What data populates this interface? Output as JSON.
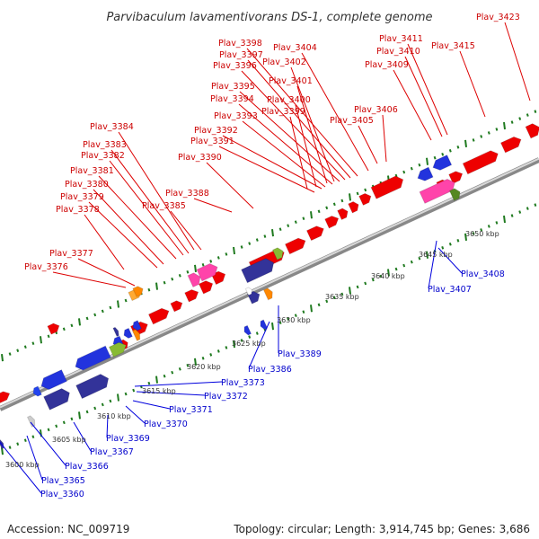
{
  "title": "Parvibaculum lavamentivorans DS-1, complete genome",
  "footer": {
    "accession": "Accession: NC_009719",
    "summary": "Topology: circular; Length: 3,914,745 bp; Genes: 3,686"
  },
  "colors": {
    "forward_label": "#cc0000",
    "reverse_label": "#0000cc",
    "backbone": "#999999",
    "ticks": "#1f7a1f"
  },
  "kbp_marks": [
    "3600 kbp",
    "3605 kbp",
    "3610 kbp",
    "3615 kbp",
    "3620 kbp",
    "3625 kbp",
    "3630 kbp",
    "3635 kbp",
    "3640 kbp",
    "3645 kbp",
    "3650 kbp"
  ],
  "forward_labels": [
    "Plav_3376",
    "Plav_3377",
    "Plav_3378",
    "Plav_3379",
    "Plav_3380",
    "Plav_3381",
    "Plav_3382",
    "Plav_3383",
    "Plav_3384",
    "Plav_3385",
    "Plav_3388",
    "Plav_3390",
    "Plav_3391",
    "Plav_3392",
    "Plav_3393",
    "Plav_3394",
    "Plav_3395",
    "Plav_3396",
    "Plav_3397",
    "Plav_3398",
    "Plav_3399",
    "Plav_3400",
    "Plav_3401",
    "Plav_3402",
    "Plav_3404",
    "Plav_3405",
    "Plav_3406",
    "Plav_3409",
    "Plav_3410",
    "Plav_3411",
    "Plav_3415",
    "Plav_3423"
  ],
  "reverse_labels": [
    "Plav_3360",
    "Plav_3365",
    "Plav_3366",
    "Plav_3367",
    "Plav_3369",
    "Plav_3370",
    "Plav_3371",
    "Plav_3372",
    "Plav_3373",
    "Plav_3386",
    "Plav_3389",
    "Plav_3407",
    "Plav_3408"
  ]
}
